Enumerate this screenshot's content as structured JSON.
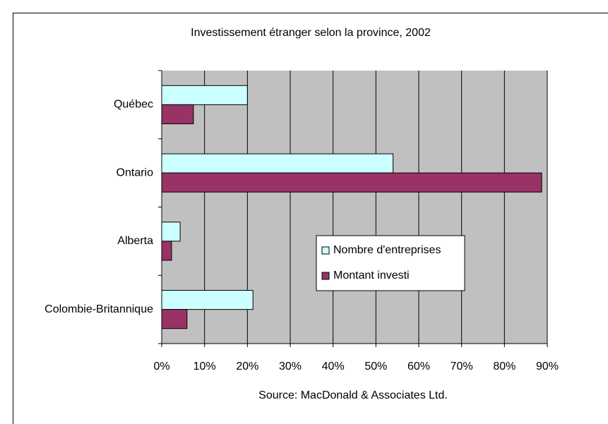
{
  "chart_data": {
    "type": "bar",
    "orientation": "horizontal",
    "title": "Investissement étranger selon la province, 2002",
    "source": "Source:  MacDonald & Associates Ltd.",
    "categories": [
      "Québec",
      "Ontario",
      "Alberta",
      "Colombie-Britannique"
    ],
    "series": [
      {
        "name": "Nombre d'entreprises",
        "color": "#ccffff",
        "values": [
          20,
          54,
          4.3,
          21.3
        ]
      },
      {
        "name": "Montant investi",
        "color": "#993366",
        "values": [
          7.4,
          88.7,
          2.3,
          5.9
        ]
      }
    ],
    "xlim": [
      0,
      90
    ],
    "xticks": [
      {
        "value": 0,
        "label": "0%"
      },
      {
        "value": 10,
        "label": "10%"
      },
      {
        "value": 20,
        "label": "20%"
      },
      {
        "value": 30,
        "label": "30%"
      },
      {
        "value": 40,
        "label": "40%"
      },
      {
        "value": 50,
        "label": "50%"
      },
      {
        "value": 60,
        "label": "60%"
      },
      {
        "value": 70,
        "label": "70%"
      },
      {
        "value": 80,
        "label": "80%"
      },
      {
        "value": 90,
        "label": "90%"
      }
    ],
    "grid": true,
    "plot_background": "#c0c0c0"
  }
}
